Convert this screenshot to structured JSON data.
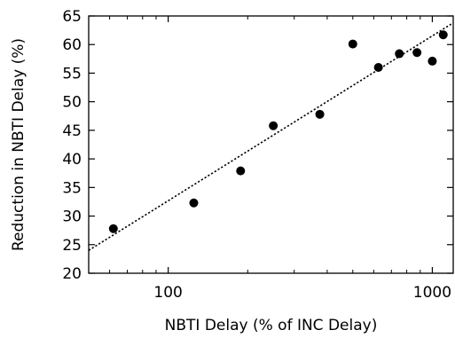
{
  "chart_data": {
    "type": "scatter",
    "title": "",
    "xlabel": "NBTI Delay (% of INC Delay)",
    "ylabel": "Reduction in NBTI Delay (%)",
    "x_scale": "log",
    "xlim": [
      50,
      1200
    ],
    "ylim": [
      20,
      65
    ],
    "x_ticks": [
      100,
      1000
    ],
    "x_tick_labels": [
      "100",
      "1000"
    ],
    "y_ticks": [
      20,
      25,
      30,
      35,
      40,
      45,
      50,
      55,
      60,
      65
    ],
    "y_tick_labels": [
      "20",
      "25",
      "30",
      "35",
      "40",
      "45",
      "50",
      "55",
      "60",
      "65"
    ],
    "grid": false,
    "series": [
      {
        "x": [
          62,
          125,
          188,
          250,
          375,
          500,
          625,
          750,
          875,
          1000,
          1100
        ],
        "y": [
          27.8,
          32.3,
          37.9,
          45.8,
          47.8,
          60.1,
          56.0,
          58.4,
          58.6,
          57.1,
          61.7
        ]
      }
    ],
    "trendline": {
      "style": "dotted",
      "points": [
        [
          50,
          24.0
        ],
        [
          1200,
          63.8
        ]
      ]
    }
  }
}
